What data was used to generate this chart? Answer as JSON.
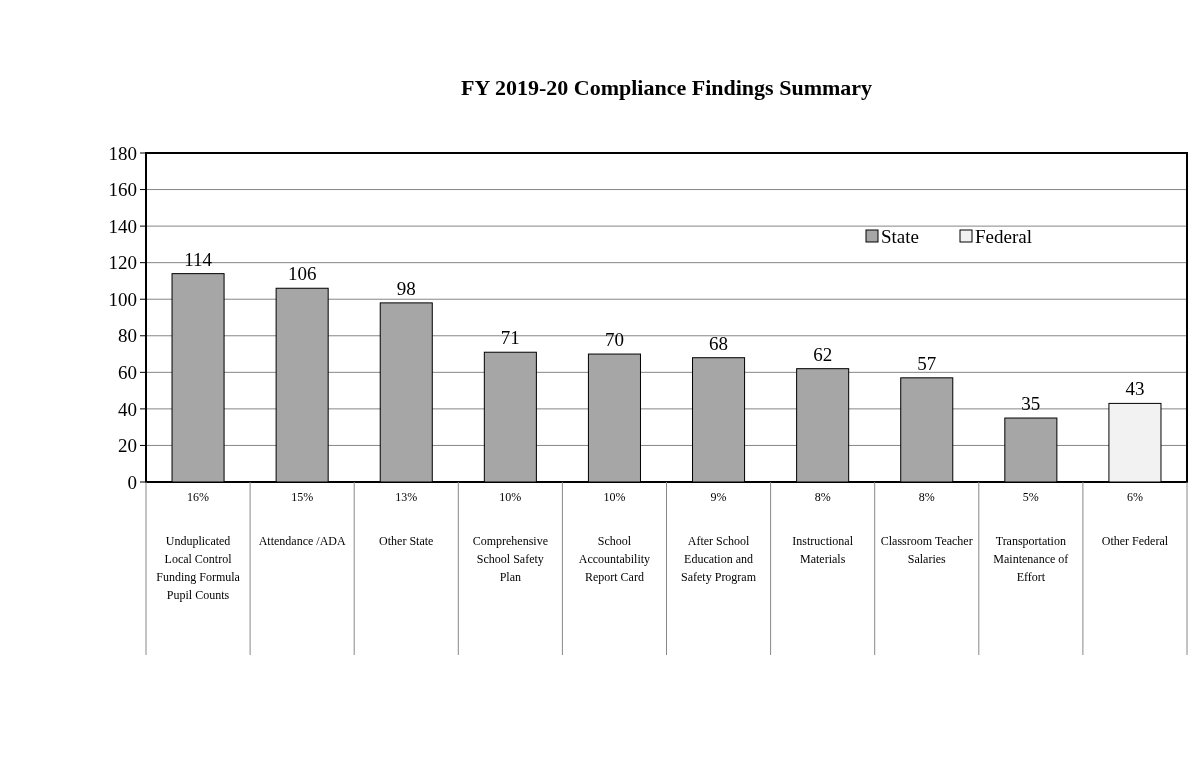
{
  "chart_data": {
    "type": "bar",
    "title": "FY 2019-20 Compliance Findings Summary",
    "categories": [
      "Unduplicated Local Control Funding Formula Pupil Counts",
      "Attendance /ADA",
      "Other State",
      "Comprehensive School Safety Plan",
      "School Accountability Report Card",
      "After School Education and Safety Program",
      "Instructional Materials",
      "Classroom Teacher Salaries",
      "Transportation Maintenance of Effort",
      "Other Federal"
    ],
    "series": [
      {
        "name": "State",
        "color": "#a6a6a6",
        "values": [
          114,
          106,
          98,
          71,
          70,
          68,
          62,
          57,
          35,
          null
        ]
      },
      {
        "name": "Federal",
        "color": "#f2f2f2",
        "values": [
          null,
          null,
          null,
          null,
          null,
          null,
          null,
          null,
          null,
          43
        ]
      }
    ],
    "ylim": [
      0,
      180
    ],
    "yticks": [
      0,
      20,
      40,
      60,
      80,
      100,
      120,
      140,
      160,
      180
    ],
    "grid": "y",
    "legend": "top right",
    "data_labels": true,
    "annotations": [
      "16%",
      "15%",
      "13%",
      "10%",
      "10%",
      "9%",
      "8%",
      "8%",
      "5%",
      "6%"
    ]
  }
}
